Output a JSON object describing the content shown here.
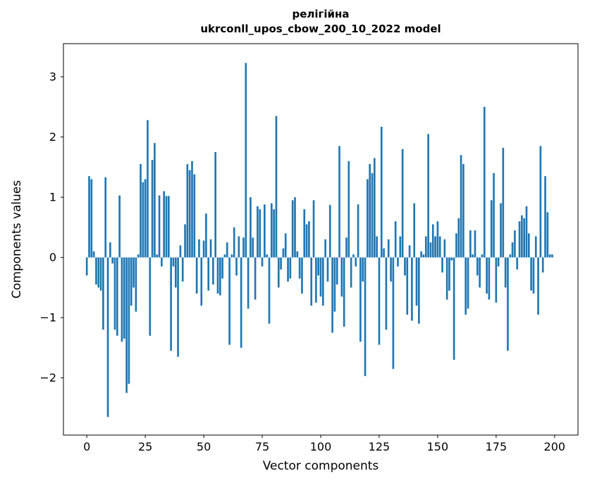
{
  "figure": {
    "title_line1": "релігійна",
    "title_line2": "ukrconll_upos_cbow_200_10_2022 model",
    "xlabel": "Vector components",
    "ylabel": "Components values"
  },
  "chart_data": {
    "type": "bar",
    "title": "релігійна — ukrconll_upos_cbow_200_10_2022 model",
    "xlabel": "Vector components",
    "ylabel": "Components values",
    "legend": "none",
    "grid": false,
    "xlim": [
      -10,
      210
    ],
    "ylim": [
      -2.95,
      3.55
    ],
    "xticks": [
      0,
      25,
      50,
      75,
      100,
      125,
      150,
      175,
      200
    ],
    "yticks": [
      -2,
      -1,
      0,
      1,
      2,
      3
    ],
    "bar_color": "#1f77b4",
    "bar_width": 0.8,
    "x_description": "vector component index 0..199",
    "values": [
      -0.3,
      1.35,
      1.3,
      0.1,
      -0.45,
      -0.5,
      -0.55,
      -1.2,
      1.33,
      -2.65,
      0.25,
      -0.1,
      -1.2,
      -1.3,
      1.03,
      -1.4,
      -1.35,
      -2.25,
      -2.1,
      -0.8,
      -0.5,
      -0.9,
      0.05,
      1.55,
      1.25,
      1.3,
      2.28,
      -1.3,
      1.62,
      1.9,
      0.05,
      1.03,
      -0.15,
      1.1,
      1.02,
      1.02,
      -1.55,
      -0.15,
      -0.5,
      -1.65,
      0.2,
      -0.4,
      0.55,
      1.55,
      1.45,
      1.6,
      1.38,
      -0.6,
      0.3,
      -0.8,
      0.28,
      0.73,
      -0.55,
      0.3,
      -0.45,
      1.75,
      -0.6,
      -0.63,
      -0.35,
      0.05,
      0.25,
      -1.45,
      0.05,
      0.5,
      -0.3,
      0.35,
      -1.5,
      0.33,
      3.23,
      -0.85,
      1.0,
      0.33,
      -0.7,
      0.85,
      0.8,
      -0.15,
      0.88,
      0.05,
      -1.1,
      0.9,
      0.8,
      2.35,
      -0.5,
      -0.2,
      0.15,
      0.4,
      -0.4,
      -0.35,
      0.95,
      1.0,
      0.1,
      -0.35,
      -0.6,
      0.8,
      0.55,
      0.6,
      -0.8,
      0.95,
      -0.75,
      -0.3,
      -0.65,
      -0.8,
      0.3,
      -0.4,
      0.87,
      -1.25,
      -0.9,
      -0.45,
      1.85,
      -0.65,
      -1.15,
      0.33,
      1.6,
      -0.5,
      0.05,
      -0.15,
      0.88,
      -1.4,
      -0.4,
      -1.97,
      1.3,
      1.55,
      1.4,
      1.65,
      0.35,
      -1.45,
      2.17,
      0.15,
      -1.2,
      0.3,
      -0.4,
      -1.85,
      0.6,
      -0.15,
      0.35,
      1.8,
      -0.3,
      -0.95,
      0.2,
      -1.05,
      0.9,
      -0.8,
      -1.1,
      0.1,
      0.05,
      0.35,
      2.05,
      0.25,
      0.55,
      0.35,
      0.6,
      0.35,
      -0.25,
      0.3,
      -0.7,
      -0.55,
      -0.05,
      -1.7,
      0.4,
      0.65,
      1.7,
      1.55,
      -0.95,
      -0.85,
      0.45,
      0.05,
      0.45,
      -0.3,
      -0.5,
      0.05,
      2.5,
      -0.6,
      -0.7,
      0.95,
      1.4,
      -0.75,
      -0.15,
      0.9,
      1.82,
      -0.5,
      -1.55,
      0.05,
      0.25,
      0.45,
      -0.2,
      0.6,
      0.7,
      0.65,
      0.85,
      0.4,
      -0.55,
      -0.6,
      0.35,
      -0.95,
      1.85,
      -0.25,
      1.35,
      0.75,
      0.05,
      0.05
    ]
  }
}
